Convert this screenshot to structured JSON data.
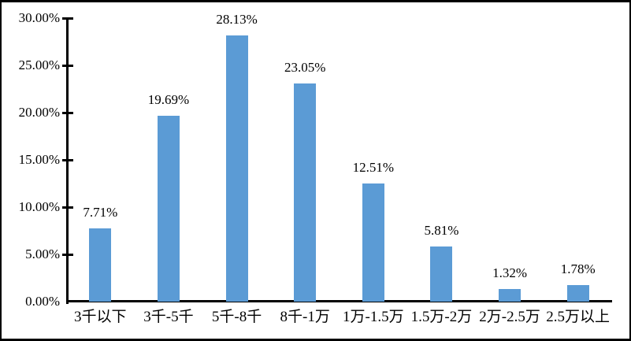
{
  "frame": {
    "background": "#ffffff",
    "border_color": "#000000"
  },
  "chart_data": {
    "type": "bar",
    "title": "",
    "xlabel": "",
    "ylabel": "",
    "categories": [
      "3千以下",
      "3千-5千",
      "5千-8千",
      "8千-1万",
      "1万-1.5万",
      "1.5万-2万",
      "2万-2.5万",
      "2.5万以上"
    ],
    "values": [
      7.71,
      19.69,
      28.13,
      23.05,
      12.51,
      5.81,
      1.32,
      1.78
    ],
    "data_labels": [
      "7.71%",
      "19.69%",
      "28.13%",
      "23.05%",
      "12.51%",
      "5.81%",
      "1.32%",
      "1.78%"
    ],
    "y_axis": {
      "min": 0,
      "max": 30,
      "step": 5,
      "tick_values": [
        30,
        25,
        20,
        15,
        10,
        5,
        0
      ],
      "tick_labels": [
        "30.00%",
        "25.00%",
        "20.00%",
        "15.00%",
        "10.00%",
        "5.00%",
        "0.00%"
      ]
    },
    "bar_color": "#5B9BD5",
    "axis_color": "#000000",
    "grid": false,
    "legend": false,
    "data_labels_position": "above-bars"
  }
}
